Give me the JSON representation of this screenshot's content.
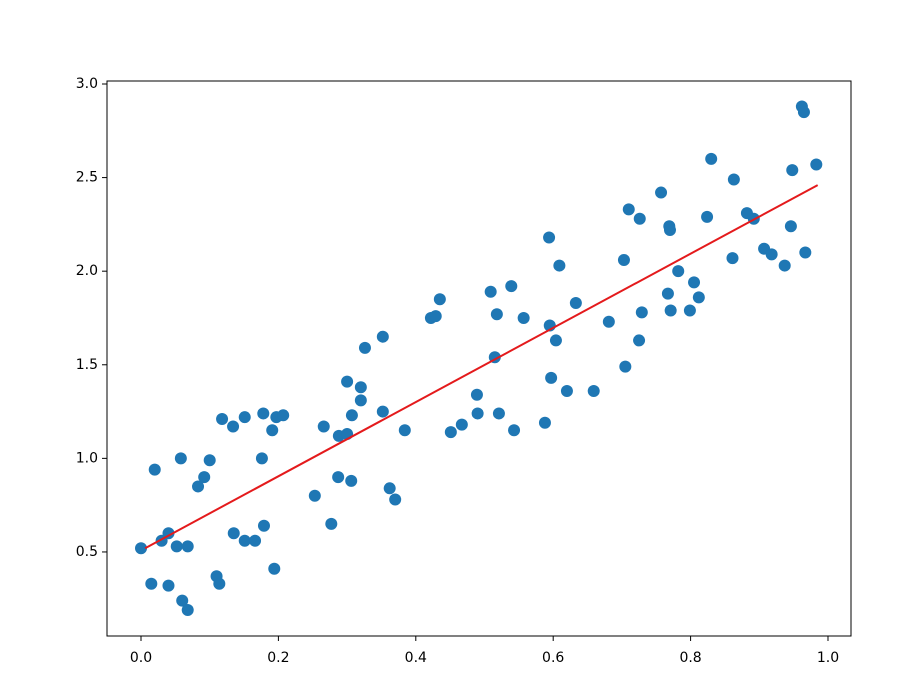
{
  "chart_data": {
    "type": "scatter",
    "xlim": [
      -0.0495,
      1.0335
    ],
    "ylim": [
      0.051,
      3.016
    ],
    "xticks": [
      {
        "value": 0,
        "label": "0.0"
      },
      0.2,
      0.4,
      0.6,
      0.8,
      {
        "value": 1,
        "label": "1.0"
      }
    ],
    "yticks": [
      0.5,
      {
        "value": 1,
        "label": "1.0"
      },
      1.5,
      {
        "value": 2,
        "label": "2.0"
      },
      2.5,
      {
        "value": 3,
        "label": "3.0"
      }
    ],
    "grid": false,
    "series": [
      {
        "type": "scatter",
        "color": "#1f77b4",
        "x": [
          0.0,
          0.02,
          0.015,
          0.03,
          0.04,
          0.04,
          0.052,
          0.058,
          0.06,
          0.068,
          0.068,
          0.083,
          0.092,
          0.1,
          0.11,
          0.114,
          0.118,
          0.134,
          0.135,
          0.151,
          0.151,
          0.166,
          0.176,
          0.178,
          0.179,
          0.191,
          0.194,
          0.197,
          0.207,
          0.253,
          0.266,
          0.277,
          0.287,
          0.288,
          0.3,
          0.3,
          0.306,
          0.307,
          0.32,
          0.32,
          0.326,
          0.352,
          0.352,
          0.362,
          0.37,
          0.384,
          0.422,
          0.429,
          0.435,
          0.451,
          0.467,
          0.489,
          0.49,
          0.509,
          0.515,
          0.518,
          0.521,
          0.539,
          0.543,
          0.557,
          0.588,
          0.594,
          0.595,
          0.597,
          0.604,
          0.609,
          0.62,
          0.633,
          0.659,
          0.681,
          0.703,
          0.705,
          0.71,
          0.725,
          0.726,
          0.729,
          0.757,
          0.767,
          0.769,
          0.77,
          0.771,
          0.782,
          0.799,
          0.805,
          0.812,
          0.824,
          0.83,
          0.861,
          0.863,
          0.882,
          0.892,
          0.907,
          0.918,
          0.937,
          0.946,
          0.948,
          0.962,
          0.965,
          0.967,
          0.983
        ],
        "values": [
          0.52,
          0.94,
          0.33,
          0.56,
          0.32,
          0.6,
          0.53,
          1.0,
          0.24,
          0.53,
          0.19,
          0.85,
          0.9,
          0.99,
          0.37,
          0.33,
          1.21,
          1.17,
          0.6,
          1.22,
          0.56,
          0.56,
          1.0,
          1.24,
          0.64,
          1.15,
          0.41,
          1.22,
          1.23,
          0.8,
          1.17,
          0.65,
          0.9,
          1.12,
          1.41,
          1.13,
          0.88,
          1.23,
          1.38,
          1.31,
          1.59,
          1.65,
          1.25,
          0.84,
          0.78,
          1.15,
          1.75,
          1.76,
          1.85,
          1.14,
          1.18,
          1.34,
          1.24,
          1.89,
          1.54,
          1.77,
          1.24,
          1.92,
          1.15,
          1.75,
          1.19,
          2.18,
          1.71,
          1.43,
          1.63,
          2.03,
          1.36,
          1.83,
          1.36,
          1.73,
          2.06,
          1.49,
          2.33,
          1.63,
          2.28,
          1.78,
          2.42,
          1.88,
          2.24,
          2.22,
          1.79,
          2.0,
          1.79,
          1.94,
          1.86,
          2.29,
          2.6,
          2.07,
          2.49,
          2.31,
          2.28,
          2.12,
          2.09,
          2.03,
          2.24,
          2.54,
          2.88,
          2.85,
          2.1,
          2.57
        ]
      },
      {
        "type": "line",
        "color": "#e41a1c",
        "x": [
          0.006,
          0.985
        ],
        "values": [
          0.52,
          2.46
        ]
      }
    ]
  }
}
